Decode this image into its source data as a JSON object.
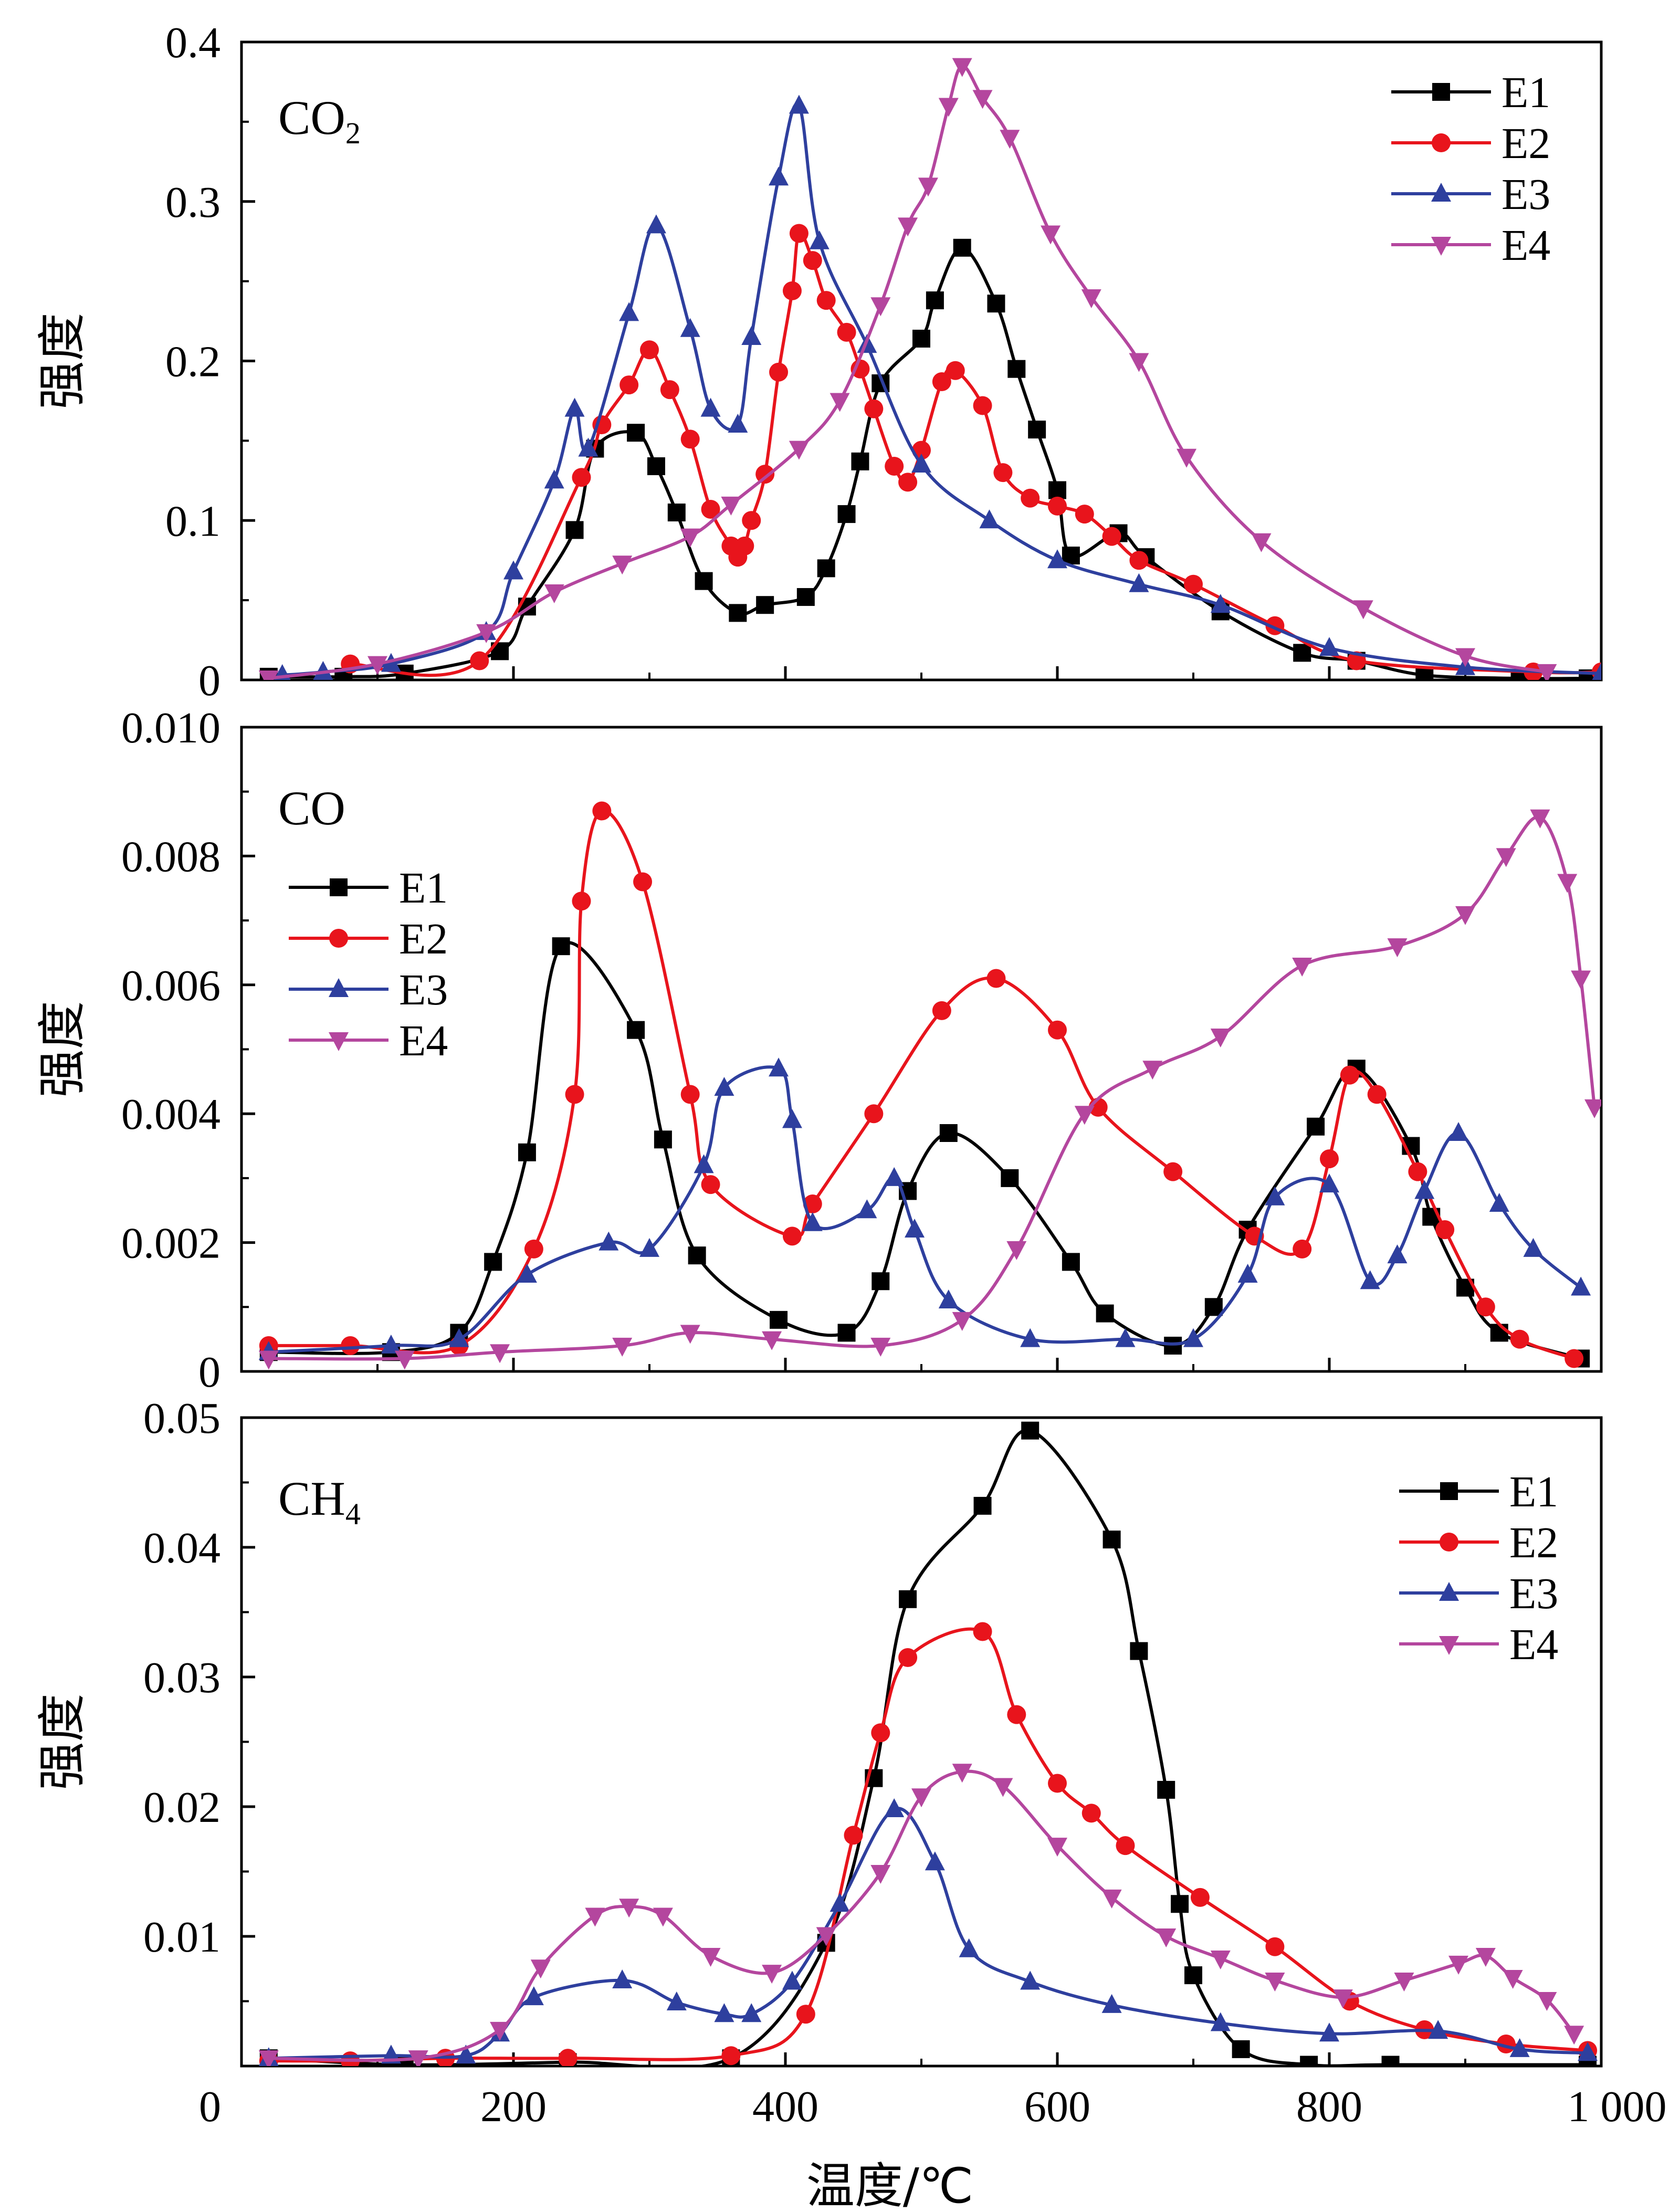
{
  "xlabel": "温度/℃",
  "xticks": [
    "0",
    "200",
    "400",
    "600",
    "800",
    "1 000"
  ],
  "colors": {
    "E1": "#000000",
    "E2": "#e8141c",
    "E3": "#2e3f9e",
    "E4": "#b4469e"
  },
  "markers": {
    "E1": "square",
    "E2": "circle",
    "E3": "triangle-up",
    "E4": "triangle-down"
  },
  "chart_data": [
    {
      "type": "line",
      "annotation": {
        "base": "CO",
        "sub": "2"
      },
      "ylabel": "强度",
      "xlim": [
        0,
        1000
      ],
      "ylim": [
        0,
        0.4
      ],
      "yticks": [
        "0",
        "0.1",
        "0.2",
        "0.3",
        "0.4"
      ],
      "legend": "top-right",
      "series": [
        {
          "name": "E1",
          "x": [
            20,
            75,
            120,
            190,
            210,
            245,
            260,
            290,
            305,
            320,
            340,
            365,
            385,
            415,
            430,
            445,
            455,
            470,
            500,
            510,
            530,
            555,
            570,
            585,
            600,
            610,
            645,
            665,
            720,
            780,
            820,
            870,
            940,
            990
          ],
          "y": [
            0.002,
            0.002,
            0.004,
            0.018,
            0.046,
            0.094,
            0.145,
            0.155,
            0.134,
            0.105,
            0.062,
            0.042,
            0.047,
            0.052,
            0.07,
            0.104,
            0.137,
            0.186,
            0.214,
            0.238,
            0.271,
            0.236,
            0.195,
            0.157,
            0.119,
            0.078,
            0.092,
            0.077,
            0.043,
            0.017,
            0.012,
            0.003,
            0.001,
            0.001
          ]
        },
        {
          "name": "E2",
          "x": [
            80,
            175,
            250,
            265,
            285,
            300,
            315,
            330,
            345,
            360,
            365,
            370,
            375,
            385,
            395,
            405,
            410,
            420,
            430,
            445,
            455,
            465,
            480,
            490,
            500,
            515,
            525,
            545,
            560,
            580,
            600,
            620,
            640,
            660,
            700,
            760,
            820,
            950,
            1000
          ],
          "y": [
            0.01,
            0.012,
            0.127,
            0.16,
            0.185,
            0.207,
            0.182,
            0.151,
            0.107,
            0.084,
            0.077,
            0.084,
            0.1,
            0.129,
            0.193,
            0.244,
            0.28,
            0.263,
            0.238,
            0.218,
            0.195,
            0.17,
            0.134,
            0.124,
            0.144,
            0.187,
            0.194,
            0.172,
            0.13,
            0.114,
            0.109,
            0.104,
            0.09,
            0.075,
            0.06,
            0.034,
            0.012,
            0.005,
            0.005
          ]
        },
        {
          "name": "E3",
          "x": [
            30,
            60,
            110,
            180,
            200,
            230,
            245,
            255,
            285,
            305,
            330,
            345,
            365,
            375,
            395,
            410,
            425,
            460,
            500,
            550,
            600,
            660,
            720,
            800,
            900,
            1000
          ],
          "y": [
            0.003,
            0.005,
            0.01,
            0.03,
            0.068,
            0.125,
            0.17,
            0.145,
            0.23,
            0.285,
            0.22,
            0.17,
            0.16,
            0.215,
            0.315,
            0.36,
            0.275,
            0.21,
            0.135,
            0.1,
            0.075,
            0.06,
            0.047,
            0.02,
            0.008,
            0.004
          ]
        },
        {
          "name": "E4",
          "x": [
            20,
            100,
            180,
            230,
            280,
            330,
            360,
            410,
            440,
            470,
            490,
            505,
            520,
            530,
            545,
            565,
            595,
            625,
            660,
            695,
            750,
            825,
            900,
            960
          ],
          "y": [
            0.001,
            0.01,
            0.03,
            0.055,
            0.073,
            0.09,
            0.11,
            0.145,
            0.175,
            0.235,
            0.285,
            0.31,
            0.36,
            0.385,
            0.365,
            0.34,
            0.28,
            0.24,
            0.2,
            0.14,
            0.087,
            0.045,
            0.015,
            0.005
          ]
        }
      ]
    },
    {
      "type": "line",
      "annotation": {
        "base": "CO",
        "sub": ""
      },
      "ylabel": "强度",
      "xlim": [
        0,
        1000
      ],
      "ylim": [
        0,
        0.01
      ],
      "yticks": [
        "0",
        "0.002",
        "0.004",
        "0.006",
        "0.008",
        "0.010"
      ],
      "legend": "top-left",
      "series": [
        {
          "name": "E1",
          "x": [
            20,
            110,
            160,
            185,
            210,
            235,
            290,
            310,
            335,
            395,
            445,
            470,
            490,
            520,
            565,
            610,
            635,
            685,
            715,
            740,
            790,
            820,
            860,
            875,
            900,
            925,
            985
          ],
          "y": [
            0.0003,
            0.0003,
            0.0006,
            0.0017,
            0.0034,
            0.0066,
            0.0053,
            0.0036,
            0.0018,
            0.0008,
            0.0006,
            0.0014,
            0.0028,
            0.0037,
            0.003,
            0.0017,
            0.0009,
            0.0004,
            0.001,
            0.0022,
            0.0038,
            0.0047,
            0.0035,
            0.0024,
            0.0013,
            0.0006,
            0.0002
          ]
        },
        {
          "name": "E2",
          "x": [
            20,
            80,
            160,
            215,
            245,
            250,
            265,
            295,
            330,
            345,
            405,
            420,
            465,
            515,
            555,
            600,
            630,
            685,
            745,
            780,
            800,
            815,
            835,
            865,
            885,
            915,
            940,
            980
          ],
          "y": [
            0.0004,
            0.0004,
            0.0004,
            0.0019,
            0.0043,
            0.0073,
            0.0087,
            0.0076,
            0.0043,
            0.0029,
            0.0021,
            0.0026,
            0.004,
            0.0056,
            0.0061,
            0.0053,
            0.0041,
            0.0031,
            0.0021,
            0.0019,
            0.0033,
            0.0046,
            0.0043,
            0.0031,
            0.0022,
            0.001,
            0.0005,
            0.0002
          ]
        },
        {
          "name": "E3",
          "x": [
            20,
            110,
            160,
            210,
            270,
            300,
            340,
            355,
            395,
            405,
            420,
            460,
            480,
            495,
            520,
            580,
            650,
            700,
            740,
            760,
            800,
            830,
            850,
            870,
            895,
            925,
            950,
            985
          ],
          "y": [
            0.0003,
            0.0004,
            0.0005,
            0.0015,
            0.002,
            0.0019,
            0.0032,
            0.0044,
            0.0047,
            0.0039,
            0.0023,
            0.0025,
            0.003,
            0.0022,
            0.0011,
            0.0005,
            0.0005,
            0.0005,
            0.0015,
            0.0027,
            0.0029,
            0.0014,
            0.0018,
            0.0028,
            0.0037,
            0.0026,
            0.0019,
            0.0013
          ]
        },
        {
          "name": "E4",
          "x": [
            20,
            120,
            190,
            280,
            330,
            390,
            470,
            530,
            570,
            620,
            670,
            720,
            780,
            850,
            900,
            930,
            955,
            975,
            985,
            995
          ],
          "y": [
            0.0002,
            0.0002,
            0.0003,
            0.0004,
            0.0006,
            0.0005,
            0.0004,
            0.0008,
            0.0019,
            0.004,
            0.0047,
            0.0052,
            0.0063,
            0.0066,
            0.0071,
            0.008,
            0.0086,
            0.0076,
            0.0061,
            0.0041
          ]
        }
      ]
    },
    {
      "type": "line",
      "annotation": {
        "base": "CH",
        "sub": "4"
      },
      "ylabel": "强度",
      "xlim": [
        0,
        1000
      ],
      "ylim": [
        0,
        0.05
      ],
      "yticks": [
        "",
        "0.01",
        "0.02",
        "0.03",
        "0.04",
        "0.05"
      ],
      "legend": "top-right",
      "series": [
        {
          "name": "E1",
          "x": [
            20,
            120,
            240,
            360,
            430,
            465,
            490,
            545,
            580,
            640,
            660,
            680,
            690,
            700,
            735,
            785,
            845,
            990
          ],
          "y": [
            0.0006,
            0.0001,
            0.0003,
            0.0006,
            0.0095,
            0.0222,
            0.036,
            0.0432,
            0.049,
            0.0406,
            0.032,
            0.0213,
            0.0125,
            0.007,
            0.0013,
            0.0001,
            0.0001,
            0.0001
          ]
        },
        {
          "name": "E2",
          "x": [
            20,
            80,
            150,
            240,
            360,
            415,
            450,
            470,
            490,
            545,
            570,
            600,
            625,
            650,
            705,
            760,
            815,
            870,
            930,
            990
          ],
          "y": [
            0.0004,
            0.0004,
            0.0006,
            0.0006,
            0.0008,
            0.004,
            0.0178,
            0.0257,
            0.0315,
            0.0335,
            0.0271,
            0.0218,
            0.0195,
            0.017,
            0.013,
            0.0092,
            0.005,
            0.0028,
            0.0017,
            0.0012
          ]
        },
        {
          "name": "E3",
          "x": [
            20,
            110,
            165,
            190,
            215,
            280,
            320,
            355,
            375,
            405,
            440,
            480,
            510,
            535,
            580,
            640,
            720,
            800,
            880,
            940,
            990
          ],
          "y": [
            0.0006,
            0.0008,
            0.0008,
            0.0025,
            0.0053,
            0.0066,
            0.0049,
            0.004,
            0.004,
            0.0065,
            0.0125,
            0.0198,
            0.0157,
            0.009,
            0.0065,
            0.0047,
            0.0033,
            0.0025,
            0.0027,
            0.0013,
            0.001
          ]
        },
        {
          "name": "E4",
          "x": [
            20,
            130,
            190,
            220,
            260,
            285,
            310,
            345,
            390,
            430,
            470,
            500,
            530,
            560,
            600,
            640,
            680,
            720,
            760,
            810,
            855,
            895,
            915,
            935,
            960,
            980
          ],
          "y": [
            0.0006,
            0.0006,
            0.0028,
            0.0076,
            0.0116,
            0.0123,
            0.0116,
            0.0085,
            0.0072,
            0.0101,
            0.0149,
            0.0208,
            0.0227,
            0.0216,
            0.017,
            0.013,
            0.01,
            0.0083,
            0.0066,
            0.0053,
            0.0066,
            0.0079,
            0.0085,
            0.0068,
            0.0051,
            0.0025
          ]
        }
      ]
    }
  ]
}
